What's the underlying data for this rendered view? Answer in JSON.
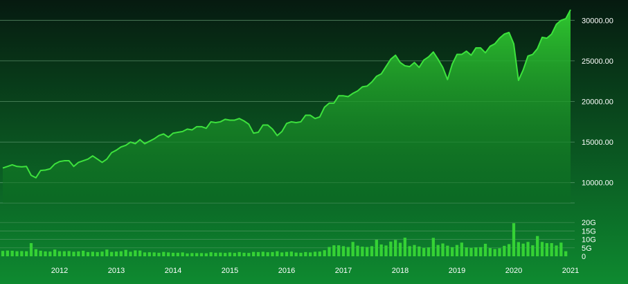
{
  "colors": {
    "bg_top": "#061a10",
    "bg_bottom": "#0e8a30",
    "line": "#3de23d",
    "area_top": "#2fc62f",
    "area_bottom": "#0b6a22",
    "bar": "#35d235",
    "grid": "#6fa87f",
    "text": "#ffffff"
  },
  "chart_data": [
    {
      "type": "area",
      "title": "",
      "xlabel": "",
      "ylabel": "",
      "ylim": [
        7500,
        32500
      ],
      "x_ticks": [
        "2012",
        "2013",
        "2014",
        "2015",
        "2016",
        "2017",
        "2018",
        "2019",
        "2020",
        "2021"
      ],
      "y_ticks": [
        "10000.00",
        "15000.00",
        "20000.00",
        "25000.00",
        "30000.00"
      ],
      "y_tick_values": [
        10000,
        15000,
        20000,
        25000,
        30000
      ],
      "grid": true,
      "x": [
        "2011-01",
        "2011-02",
        "2011-03",
        "2011-04",
        "2011-05",
        "2011-06",
        "2011-07",
        "2011-08",
        "2011-09",
        "2011-10",
        "2011-11",
        "2011-12",
        "2012-01",
        "2012-02",
        "2012-03",
        "2012-04",
        "2012-05",
        "2012-06",
        "2012-07",
        "2012-08",
        "2012-09",
        "2012-10",
        "2012-11",
        "2012-12",
        "2013-01",
        "2013-02",
        "2013-03",
        "2013-04",
        "2013-05",
        "2013-06",
        "2013-07",
        "2013-08",
        "2013-09",
        "2013-10",
        "2013-11",
        "2013-12",
        "2014-01",
        "2014-02",
        "2014-03",
        "2014-04",
        "2014-05",
        "2014-06",
        "2014-07",
        "2014-08",
        "2014-09",
        "2014-10",
        "2014-11",
        "2014-12",
        "2015-01",
        "2015-02",
        "2015-03",
        "2015-04",
        "2015-05",
        "2015-06",
        "2015-07",
        "2015-08",
        "2015-09",
        "2015-10",
        "2015-11",
        "2015-12",
        "2016-01",
        "2016-02",
        "2016-03",
        "2016-04",
        "2016-05",
        "2016-06",
        "2016-07",
        "2016-08",
        "2016-09",
        "2016-10",
        "2016-11",
        "2016-12",
        "2017-01",
        "2017-02",
        "2017-03",
        "2017-04",
        "2017-05",
        "2017-06",
        "2017-07",
        "2017-08",
        "2017-09",
        "2017-10",
        "2017-11",
        "2017-12",
        "2018-01",
        "2018-02",
        "2018-03",
        "2018-04",
        "2018-05",
        "2018-06",
        "2018-07",
        "2018-08",
        "2018-09",
        "2018-10",
        "2018-11",
        "2018-12",
        "2019-01",
        "2019-02",
        "2019-03",
        "2019-04",
        "2019-05",
        "2019-06",
        "2019-07",
        "2019-08",
        "2019-09",
        "2019-10",
        "2019-11",
        "2019-12",
        "2020-01",
        "2020-02",
        "2020-03",
        "2020-04",
        "2020-05",
        "2020-06",
        "2020-07",
        "2020-08",
        "2020-09",
        "2020-10",
        "2020-11",
        "2020-12",
        "2021-01"
      ],
      "series": [
        {
          "values": [
            11800,
            12000,
            12200,
            12000,
            11950,
            12000,
            10900,
            10600,
            11500,
            11550,
            11700,
            12300,
            12600,
            12700,
            12700,
            12000,
            12500,
            12700,
            12900,
            13300,
            12900,
            12500,
            12900,
            13700,
            14000,
            14400,
            14600,
            15000,
            14800,
            15300,
            14800,
            15100,
            15400,
            15800,
            16000,
            15600,
            16100,
            16200,
            16300,
            16600,
            16500,
            16900,
            16900,
            16700,
            17500,
            17400,
            17500,
            17800,
            17700,
            17700,
            17900,
            17600,
            17200,
            16100,
            16200,
            17100,
            17100,
            16600,
            15800,
            16300,
            17300,
            17500,
            17400,
            17500,
            18300,
            18300,
            17900,
            18100,
            19300,
            19800,
            19800,
            20700,
            20700,
            20600,
            21000,
            21300,
            21800,
            21900,
            22400,
            23100,
            23400,
            24300,
            25200,
            25700,
            24800,
            24400,
            24300,
            24800,
            24200,
            25100,
            25500,
            26100,
            25200,
            24200,
            22700,
            24600,
            25800,
            25800,
            26200,
            25700,
            26600,
            26600,
            26000,
            26800,
            27100,
            27800,
            28300,
            28500,
            27100,
            22600,
            23900,
            25600,
            25800,
            26500,
            27900,
            27800,
            28300,
            29500,
            30000,
            30200,
            31300
          ]
        }
      ]
    },
    {
      "type": "bar",
      "title": "",
      "ylim": [
        0,
        25
      ],
      "y_ticks": [
        "0",
        "5G",
        "10G",
        "15G",
        "20G"
      ],
      "y_tick_values": [
        0,
        5,
        10,
        15,
        20
      ],
      "series": [
        {
          "values": [
            3.2,
            3.4,
            3.3,
            3.0,
            3.1,
            3.0,
            7.8,
            4.2,
            3.3,
            2.9,
            2.8,
            4.0,
            3.0,
            3.0,
            3.1,
            2.7,
            2.9,
            3.3,
            2.5,
            2.7,
            2.5,
            2.8,
            4.0,
            2.6,
            2.8,
            3.0,
            3.8,
            2.7,
            3.5,
            3.4,
            2.3,
            2.4,
            2.3,
            2.1,
            2.6,
            2.3,
            2.1,
            2.1,
            2.3,
            1.7,
            1.9,
            1.9,
            1.9,
            1.8,
            2.4,
            2.1,
            2.2,
            2.0,
            2.3,
            2.0,
            2.5,
            2.1,
            2.0,
            2.6,
            2.5,
            2.7,
            2.4,
            2.5,
            3.0,
            2.3,
            2.6,
            2.8,
            2.2,
            2.1,
            2.5,
            2.3,
            2.7,
            2.8,
            3.6,
            5.5,
            6.5,
            6.5,
            6.0,
            5.5,
            8.5,
            6.3,
            5.7,
            5.5,
            6.0,
            9.8,
            7.0,
            6.4,
            8.7,
            9.7,
            8.0,
            11.0,
            6.0,
            6.7,
            5.8,
            5.0,
            5.3,
            10.9,
            6.7,
            7.6,
            6.3,
            5.4,
            6.7,
            8.1,
            5.3,
            5.0,
            5.3,
            5.4,
            7.4,
            4.9,
            4.3,
            4.8,
            6.2,
            7.2,
            19.6,
            8.4,
            7.5,
            8.5,
            6.5,
            12.0,
            8.5,
            7.8,
            7.8,
            6.4,
            8.1,
            3.0
          ]
        }
      ]
    }
  ]
}
